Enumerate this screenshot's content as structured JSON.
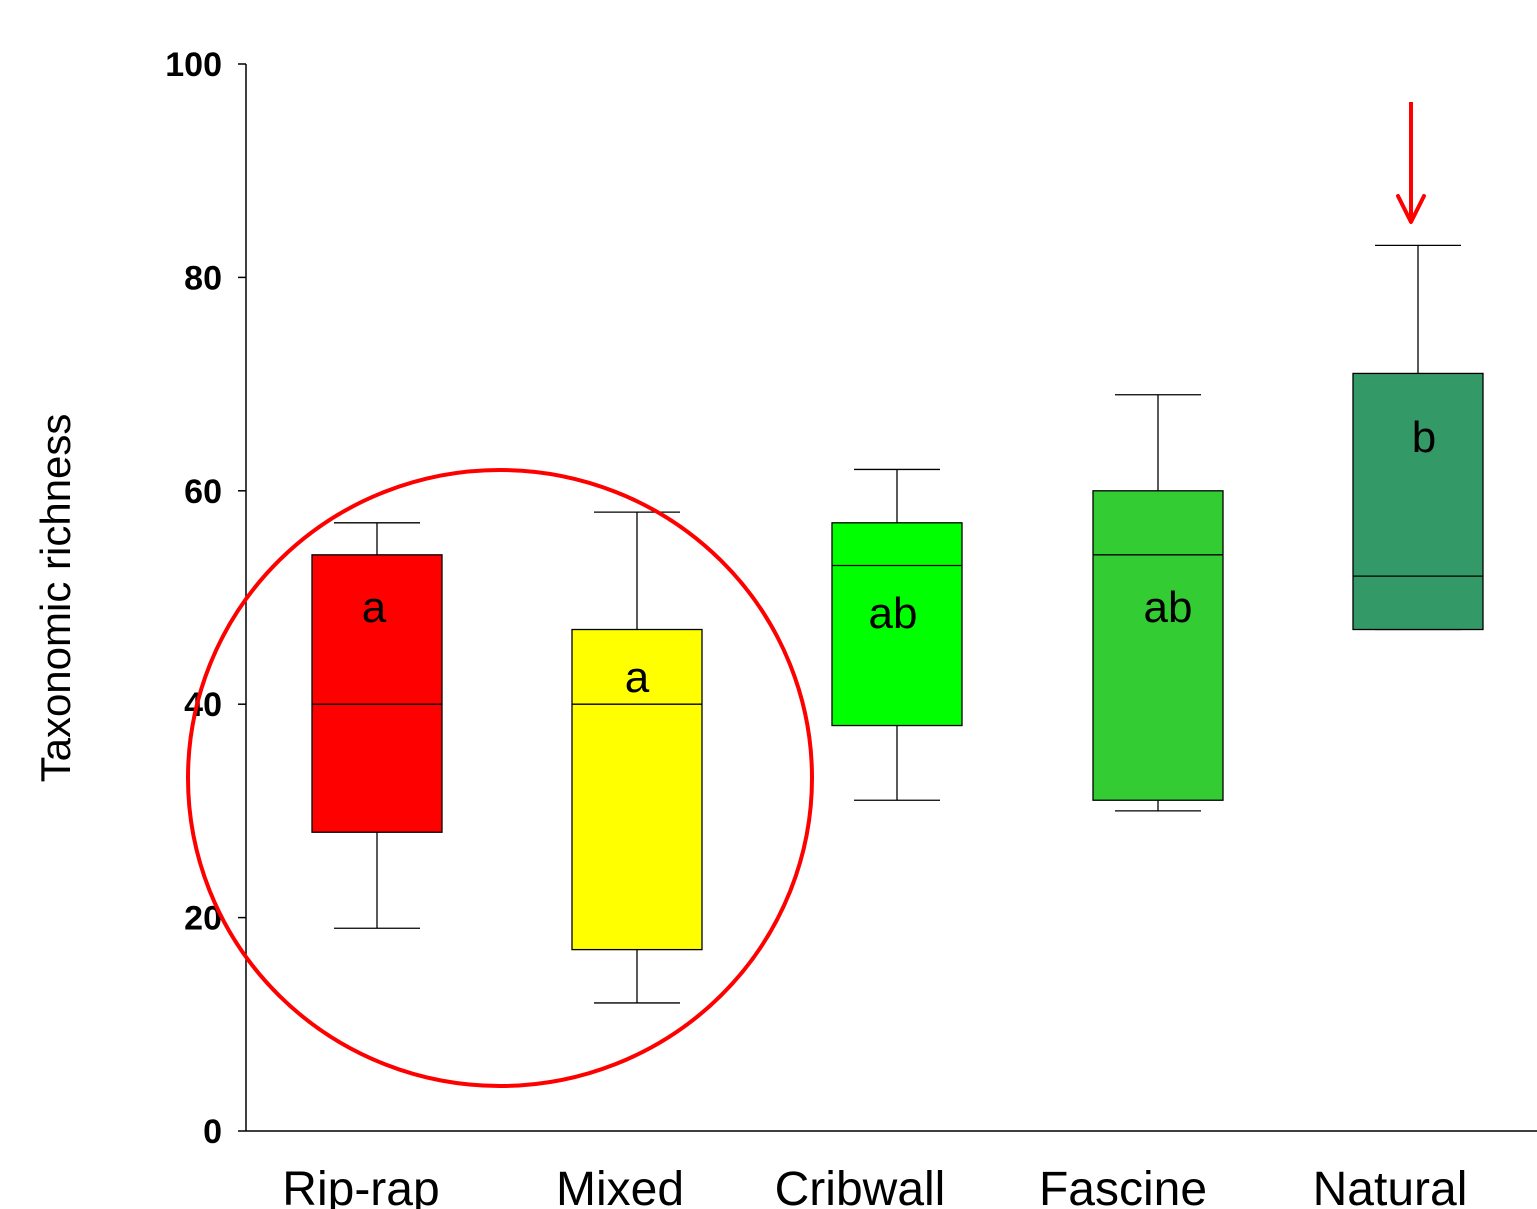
{
  "chart_data": {
    "type": "box",
    "ylabel": "Taxonomic richness",
    "ylim": [
      0,
      100
    ],
    "yticks": [
      0,
      20,
      40,
      60,
      80,
      100
    ],
    "categories": [
      "Rip-rap",
      "Mixed",
      "Cribwall",
      "Fascine",
      "Natural"
    ],
    "boxes": [
      {
        "category": "Rip-rap",
        "whisker_low": 19,
        "q1": 28,
        "median": 40,
        "q3": 54,
        "whisker_high": 57,
        "group_label": "a",
        "color": "#ff0000"
      },
      {
        "category": "Mixed",
        "whisker_low": 12,
        "q1": 17,
        "median": 40,
        "q3": 47,
        "whisker_high": 58,
        "group_label": "a",
        "color": "#ffff00"
      },
      {
        "category": "Cribwall",
        "whisker_low": 31,
        "q1": 38,
        "median": 53,
        "q3": 57,
        "whisker_high": 62,
        "group_label": "ab",
        "color": "#00ff00"
      },
      {
        "category": "Fascine",
        "whisker_low": 30,
        "q1": 31,
        "median": 54,
        "q3": 60,
        "whisker_high": 69,
        "group_label": "ab",
        "color": "#33cc33"
      },
      {
        "category": "Natural",
        "whisker_low": 47,
        "q1": 47,
        "median": 52,
        "q3": 71,
        "whisker_high": 83,
        "group_label": "b",
        "color": "#339966"
      }
    ],
    "annotations": [
      {
        "type": "circle",
        "encloses": [
          "Rip-rap",
          "Mixed"
        ],
        "color": "#ff0000"
      },
      {
        "type": "arrow",
        "points_to": "Natural",
        "direction": "down",
        "color": "#ff0000"
      }
    ],
    "grid": false,
    "legend": "none"
  }
}
